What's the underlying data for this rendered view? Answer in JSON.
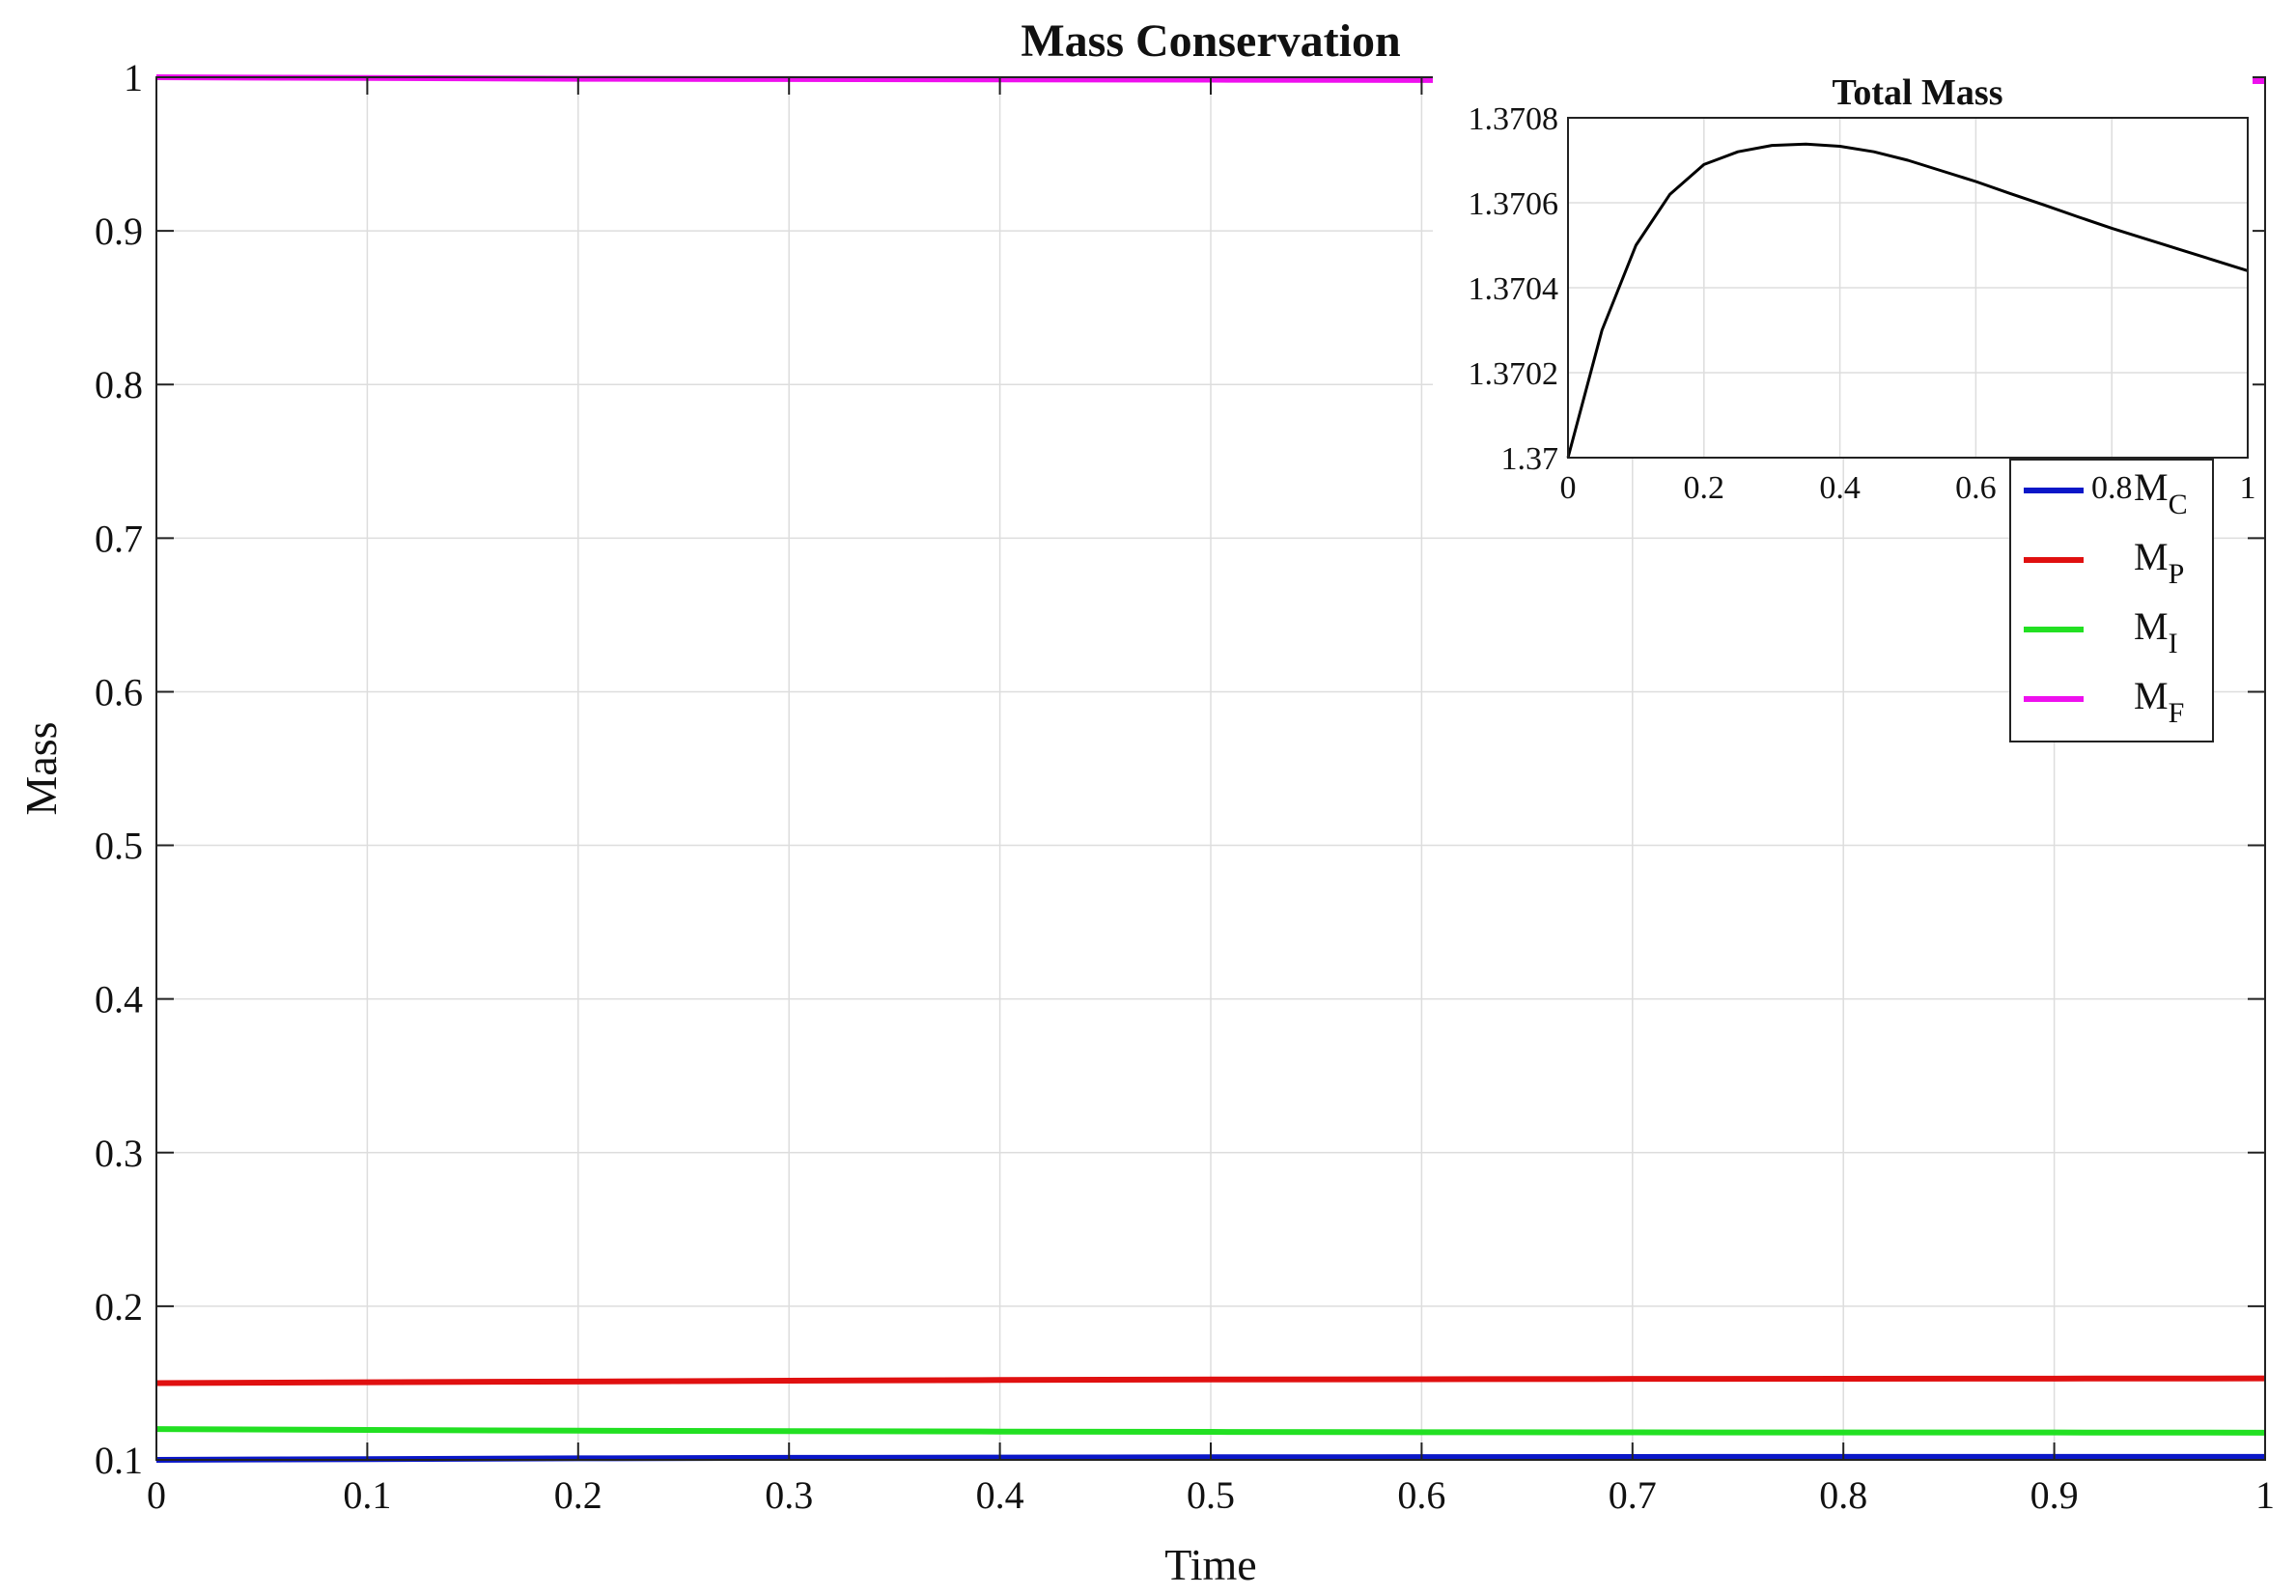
{
  "chart_data": [
    {
      "type": "line",
      "title": "Mass Conservation",
      "xlabel": "Time",
      "ylabel": "Mass",
      "xlim": [
        0,
        1
      ],
      "ylim": [
        0.1,
        1
      ],
      "xticks": [
        "0",
        "0.1",
        "0.2",
        "0.3",
        "0.4",
        "0.5",
        "0.6",
        "0.7",
        "0.8",
        "0.9",
        "1"
      ],
      "yticks": [
        "0.1",
        "0.2",
        "0.3",
        "0.4",
        "0.5",
        "0.6",
        "0.7",
        "0.8",
        "0.9",
        "1"
      ],
      "grid": true,
      "legend_position": "top-right",
      "x": [
        0,
        0.1,
        0.2,
        0.3,
        0.4,
        0.5,
        0.6,
        0.7,
        0.8,
        0.9,
        1
      ],
      "series": [
        {
          "name": "M_C",
          "legend_main": "M",
          "legend_sub": "C",
          "color": "#0a17c8",
          "values": [
            0.1,
            0.1005,
            0.101,
            0.1013,
            0.1015,
            0.1017,
            0.1018,
            0.1019,
            0.102,
            0.102,
            0.102
          ]
        },
        {
          "name": "M_P",
          "legend_main": "M",
          "legend_sub": "P",
          "color": "#e01010",
          "values": [
            0.15,
            0.1505,
            0.151,
            0.1515,
            0.152,
            0.1523,
            0.1525,
            0.1527,
            0.1528,
            0.1529,
            0.153
          ]
        },
        {
          "name": "M_I",
          "legend_main": "M",
          "legend_sub": "I",
          "color": "#22e022",
          "values": [
            0.12,
            0.1195,
            0.119,
            0.1187,
            0.1184,
            0.1182,
            0.118,
            0.1179,
            0.1178,
            0.1178,
            0.1177
          ]
        },
        {
          "name": "M_F",
          "legend_main": "M",
          "legend_sub": "F",
          "color": "#ee10ee",
          "values": [
            1.0,
            0.9995,
            0.999,
            0.9988,
            0.9986,
            0.9984,
            0.9982,
            0.998,
            0.9978,
            0.9976,
            0.9975
          ]
        }
      ]
    },
    {
      "type": "line",
      "title": "Total Mass",
      "xlabel": "",
      "ylabel": "",
      "xlim": [
        0,
        1
      ],
      "ylim": [
        1.37,
        1.3708
      ],
      "xticks": [
        "0",
        "0.2",
        "0.4",
        "0.6",
        "0.8",
        "1"
      ],
      "yticks": [
        "1.37",
        "1.3702",
        "1.3704",
        "1.3706",
        "1.3708"
      ],
      "grid": true,
      "x": [
        0,
        0.05,
        0.1,
        0.15,
        0.2,
        0.25,
        0.3,
        0.35,
        0.4,
        0.45,
        0.5,
        0.55,
        0.6,
        0.65,
        0.7,
        0.75,
        0.8,
        0.85,
        0.9,
        0.95,
        1
      ],
      "series": [
        {
          "color": "#000000",
          "values": [
            1.37,
            1.3703,
            1.3705,
            1.37062,
            1.37069,
            1.37072,
            1.370735,
            1.370738,
            1.370733,
            1.37072,
            1.3707,
            1.370675,
            1.37065,
            1.370622,
            1.370595,
            1.370567,
            1.37054,
            1.370515,
            1.37049,
            1.370465,
            1.37044
          ]
        }
      ]
    }
  ]
}
